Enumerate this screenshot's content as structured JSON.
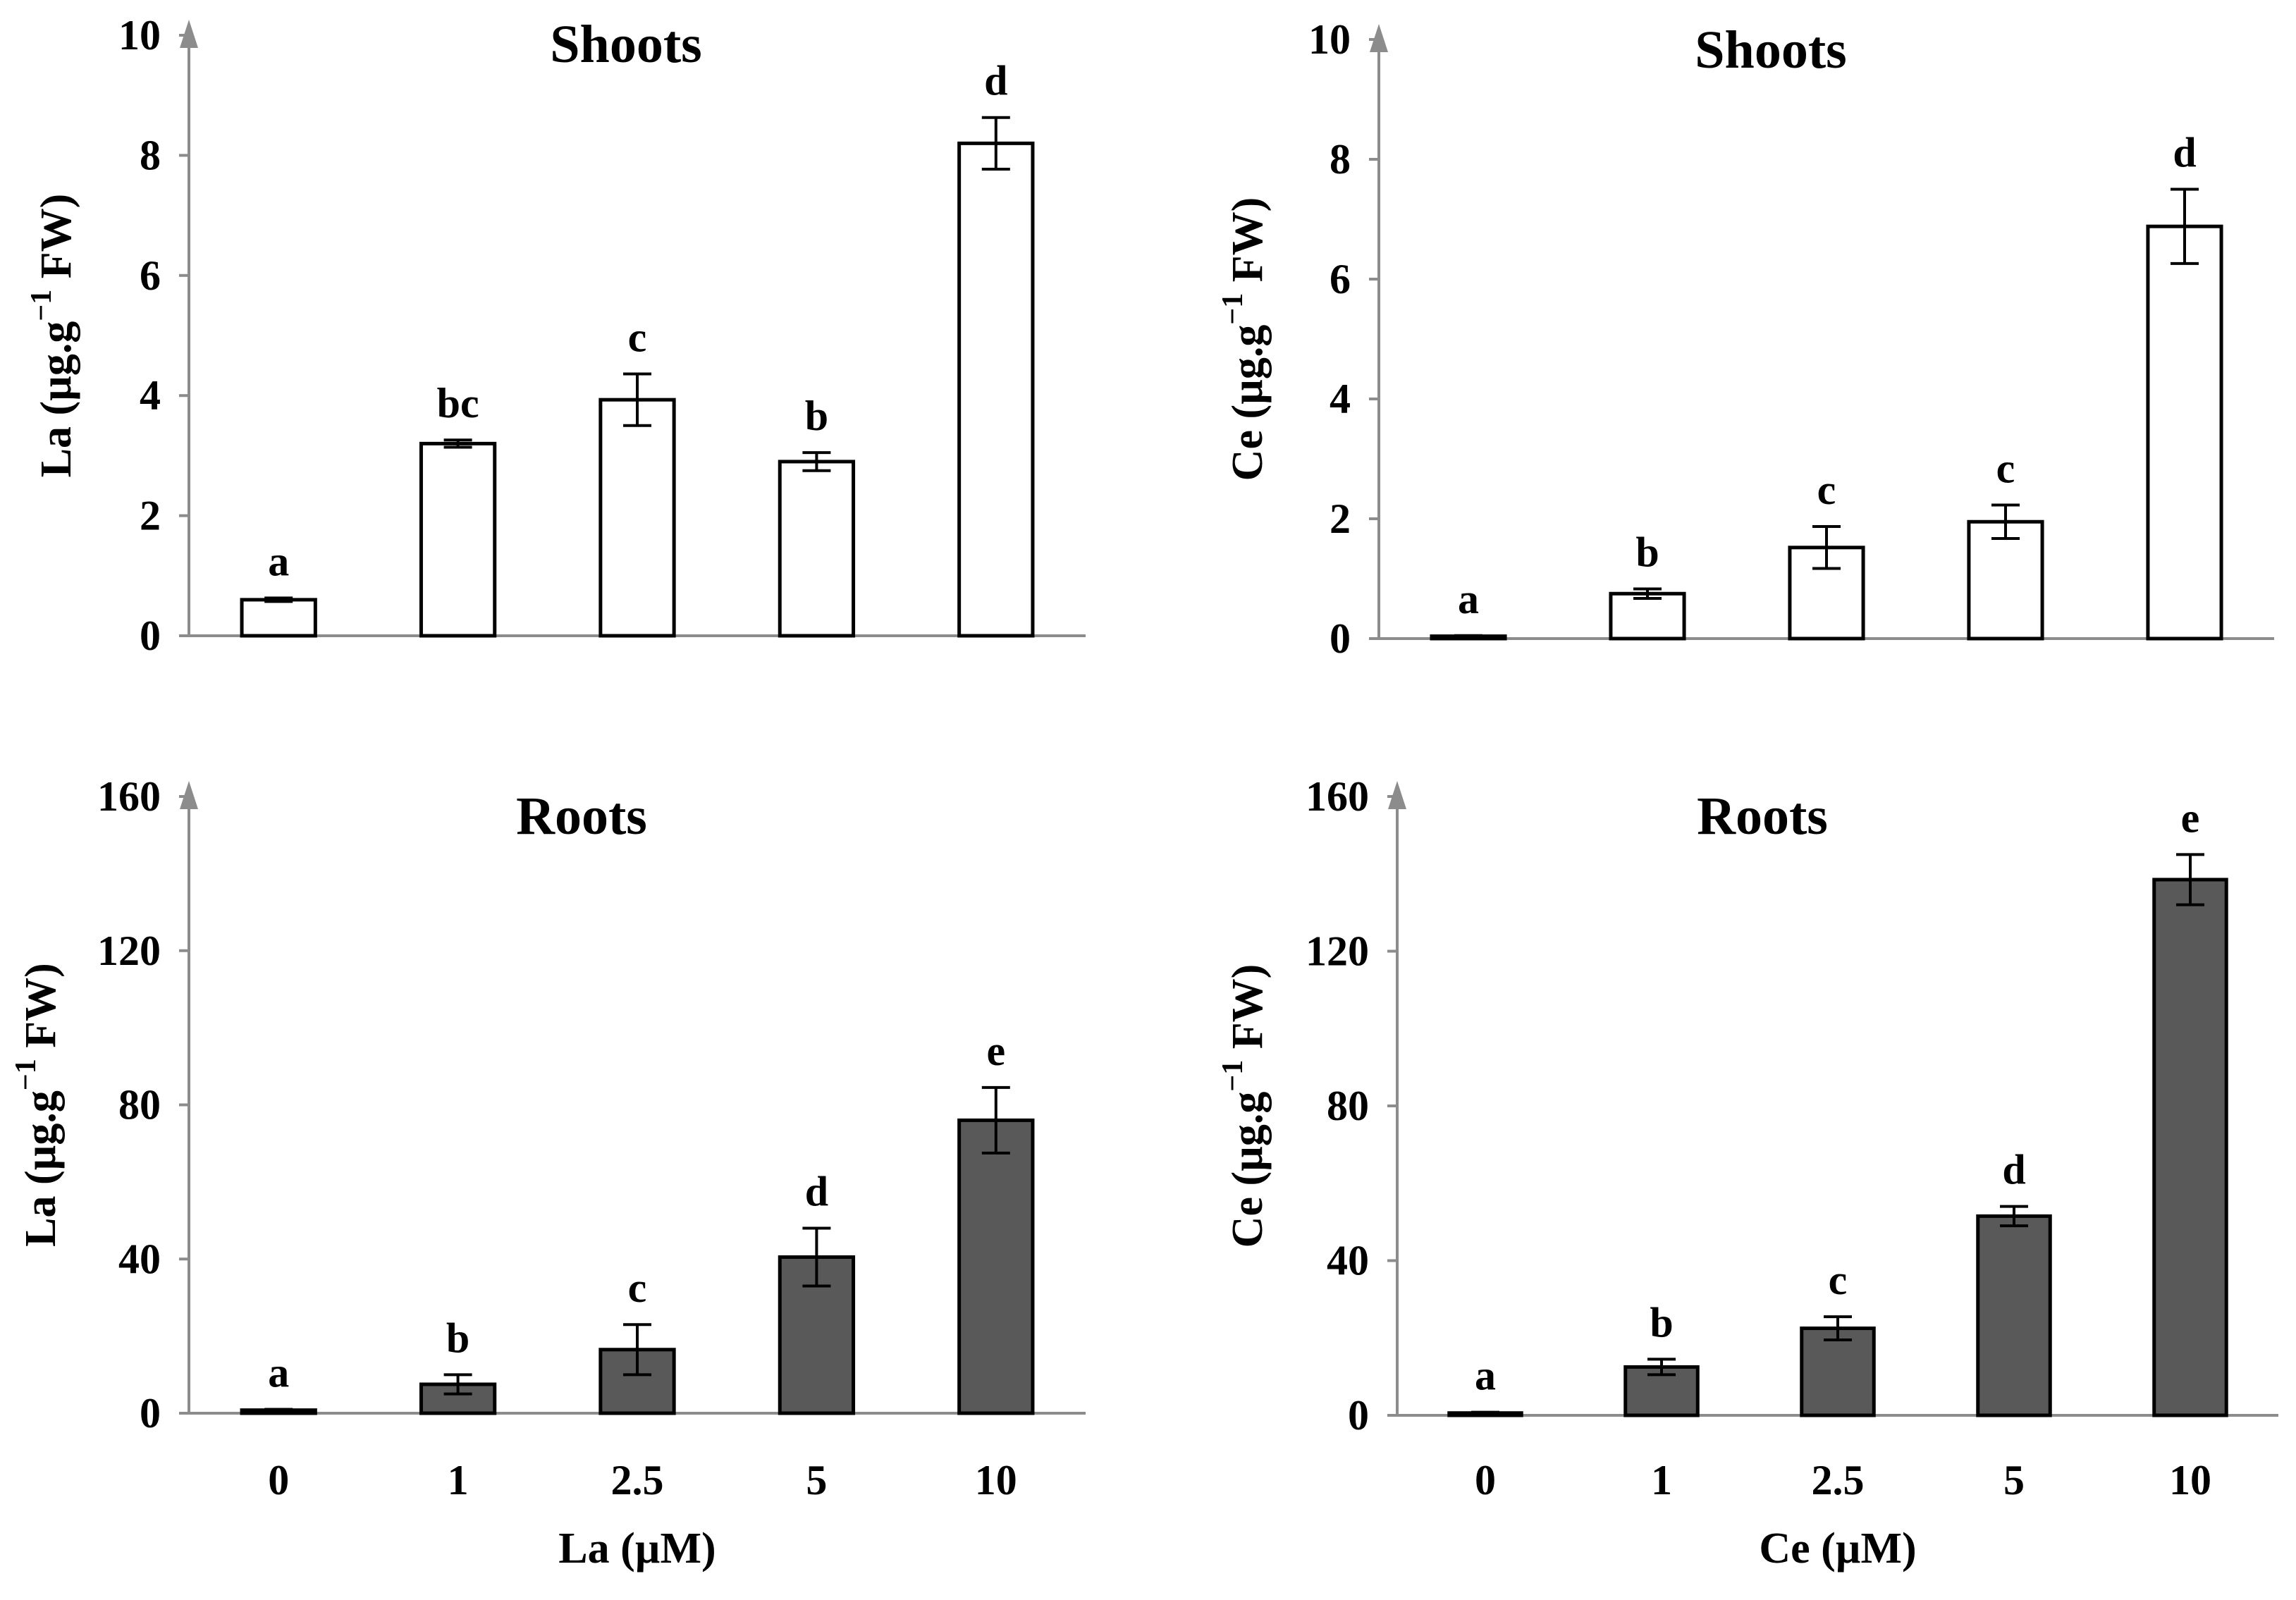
{
  "chart_data": [
    {
      "id": "la-shoots",
      "type": "bar",
      "title": "Shoots",
      "ylabel": "La (µg.g",
      "ylabel_sup": "−1",
      "ylabel_tail": " FW)",
      "xlabel": "",
      "categories": [
        "0",
        "1",
        "2.5",
        "5",
        "10"
      ],
      "values": [
        0.6,
        3.2,
        3.93,
        2.9,
        8.2
      ],
      "errors": [
        0.03,
        0.06,
        0.43,
        0.15,
        0.43
      ],
      "significance": [
        "a",
        "bc",
        "c",
        "b",
        "d"
      ],
      "ylim": [
        0,
        10
      ],
      "yticks": [
        "0",
        "2",
        "4",
        "6",
        "8",
        "10"
      ],
      "bar_color": "#ffffff",
      "show_category_labels": false
    },
    {
      "id": "ce-shoots",
      "type": "bar",
      "title": "Shoots",
      "ylabel": "Ce (µg.g",
      "ylabel_sup": "−1",
      "ylabel_tail": " FW)",
      "xlabel": "",
      "categories": [
        "0",
        "1",
        "2.5",
        "5",
        "10"
      ],
      "values": [
        0.04,
        0.75,
        1.52,
        1.95,
        6.88
      ],
      "errors": [
        0.01,
        0.08,
        0.35,
        0.28,
        0.62
      ],
      "significance": [
        "a",
        "b",
        "c",
        "c",
        "d"
      ],
      "ylim": [
        0,
        10
      ],
      "yticks": [
        "0",
        "2",
        "4",
        "6",
        "8",
        "10"
      ],
      "bar_color": "#ffffff",
      "show_category_labels": false
    },
    {
      "id": "la-roots",
      "type": "bar",
      "title": "Roots",
      "ylabel": "La (µg.g",
      "ylabel_sup": "−1",
      "ylabel_tail": " FW)",
      "xlabel": "La (µM)",
      "categories": [
        "0",
        "1",
        "2.5",
        "5",
        "10"
      ],
      "values": [
        0.8,
        7.5,
        16.5,
        40.5,
        76.0
      ],
      "errors": [
        0.2,
        2.5,
        6.5,
        7.5,
        8.5
      ],
      "significance": [
        "a",
        "b",
        "c",
        "d",
        "e"
      ],
      "ylim": [
        0,
        160
      ],
      "yticks": [
        "0",
        "40",
        "80",
        "120",
        "160"
      ],
      "bar_color": "#595959",
      "show_category_labels": true
    },
    {
      "id": "ce-roots",
      "type": "bar",
      "title": "Roots",
      "ylabel": "Ce (µg.g",
      "ylabel_sup": "−1",
      "ylabel_tail": " FW)",
      "xlabel": "Ce (µM)",
      "categories": [
        "0",
        "1",
        "2.5",
        "5",
        "10"
      ],
      "values": [
        0.6,
        12.5,
        22.5,
        51.5,
        138.5
      ],
      "errors": [
        0.2,
        2.0,
        3.0,
        2.5,
        6.5
      ],
      "significance": [
        "a",
        "b",
        "c",
        "d",
        "e"
      ],
      "ylim": [
        0,
        160
      ],
      "yticks": [
        "0",
        "40",
        "80",
        "120",
        "160"
      ],
      "bar_color": "#595959",
      "show_category_labels": true
    }
  ]
}
